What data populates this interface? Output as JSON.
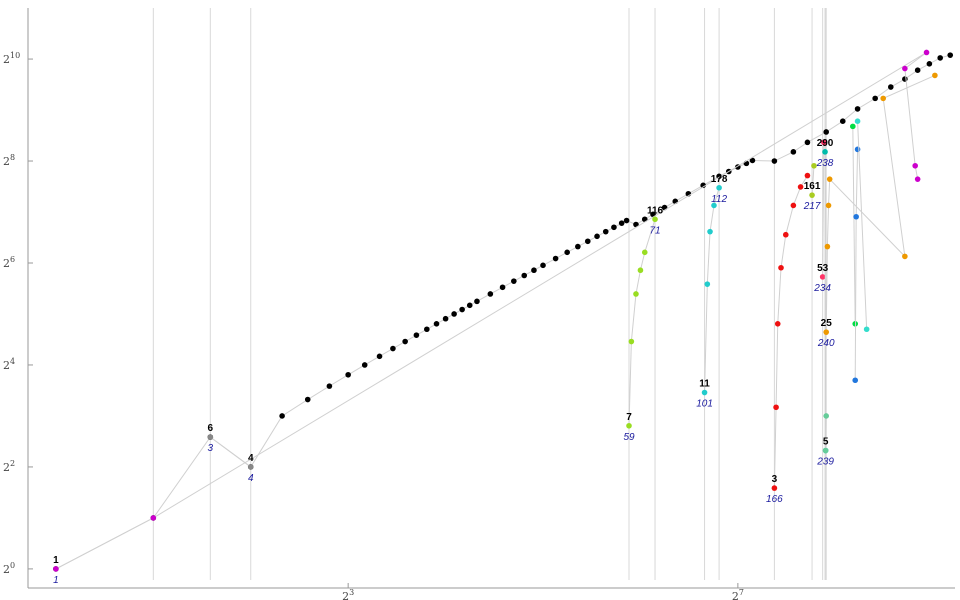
{
  "chart_data": {
    "type": "scatter",
    "title": "",
    "xlabel": "",
    "ylabel": "",
    "x_scale": "log2",
    "y_scale": "log2",
    "xlim": [
      0.82,
      600
    ],
    "ylim": [
      0.86,
      2050
    ],
    "x_ticks": [
      {
        "value": 8,
        "base": "2",
        "exp": "3"
      },
      {
        "value": 128,
        "base": "2",
        "exp": "7"
      }
    ],
    "y_ticks": [
      {
        "value": 1,
        "base": "2",
        "exp": "0"
      },
      {
        "value": 4,
        "base": "2",
        "exp": "2"
      },
      {
        "value": 16,
        "base": "2",
        "exp": "4"
      },
      {
        "value": 64,
        "base": "2",
        "exp": "6"
      },
      {
        "value": 256,
        "base": "2",
        "exp": "8"
      },
      {
        "value": 1024,
        "base": "2",
        "exp": "10"
      }
    ],
    "grid": "vertical lines at selected x values",
    "vertical_guides": [
      2,
      3,
      4,
      59,
      71,
      101,
      112,
      166,
      217,
      234,
      238,
      239,
      240
    ],
    "series": [
      {
        "color": "#000000",
        "points": [
          [
            1,
            1
          ],
          [
            2,
            2
          ],
          [
            3,
            6
          ],
          [
            4,
            4
          ],
          [
            5,
            8
          ],
          [
            6,
            10
          ],
          [
            7,
            12
          ],
          [
            8,
            14
          ],
          [
            9,
            16
          ],
          [
            10,
            18
          ],
          [
            11,
            20
          ],
          [
            12,
            22
          ],
          [
            13,
            24
          ],
          [
            14,
            26
          ],
          [
            15,
            28
          ],
          [
            16,
            30
          ],
          [
            17,
            32
          ],
          [
            18,
            34
          ],
          [
            19,
            36
          ],
          [
            20,
            38
          ],
          [
            22,
            42
          ],
          [
            24,
            46
          ],
          [
            26,
            50
          ],
          [
            28,
            54
          ],
          [
            30,
            58
          ],
          [
            32,
            62
          ],
          [
            35,
            68
          ],
          [
            38,
            74
          ],
          [
            41,
            80
          ],
          [
            44,
            86
          ],
          [
            47,
            92
          ],
          [
            50,
            98
          ],
          [
            53,
            104
          ],
          [
            56,
            110
          ],
          [
            58,
            114
          ],
          [
            62,
            108
          ],
          [
            66,
            116
          ],
          [
            70,
            124
          ],
          [
            76,
            136
          ],
          [
            82,
            148
          ],
          [
            90,
            164
          ],
          [
            100,
            184
          ],
          [
            112,
            208
          ],
          [
            120,
            222
          ],
          [
            128,
            236
          ],
          [
            136,
            248
          ],
          [
            142,
            258
          ],
          [
            166,
            256
          ],
          [
            190,
            290
          ],
          [
            210,
            330
          ],
          [
            240,
            380
          ],
          [
            270,
            440
          ],
          [
            300,
            520
          ],
          [
            340,
            600
          ],
          [
            380,
            700
          ],
          [
            420,
            780
          ],
          [
            460,
            880
          ],
          [
            500,
            960
          ],
          [
            540,
            1040
          ],
          [
            580,
            1080
          ]
        ]
      },
      {
        "color": "#cc00cc",
        "points": [
          [
            1,
            1
          ],
          [
            2,
            2
          ],
          [
            490,
            1120
          ],
          [
            420,
            900
          ],
          [
            452,
            240
          ],
          [
            460,
            200
          ]
        ]
      },
      {
        "color": "#888888",
        "points": [
          [
            3,
            6
          ],
          [
            4,
            4
          ]
        ]
      },
      {
        "color": "#99dd22",
        "points": [
          [
            59,
            7
          ],
          [
            60,
            22
          ],
          [
            62,
            42
          ],
          [
            64,
            58
          ],
          [
            66,
            74
          ],
          [
            71,
            116
          ]
        ]
      },
      {
        "color": "#22cccc",
        "points": [
          [
            101,
            11
          ],
          [
            103,
            48
          ],
          [
            105,
            98
          ],
          [
            108,
            140
          ],
          [
            112,
            178
          ]
        ]
      },
      {
        "color": "#ee1111",
        "points": [
          [
            166,
            3
          ],
          [
            168,
            9
          ],
          [
            170,
            28
          ],
          [
            174,
            60
          ],
          [
            180,
            94
          ],
          [
            190,
            140
          ],
          [
            200,
            180
          ],
          [
            210,
            210
          ]
        ]
      },
      {
        "color": "#aacc22",
        "points": [
          [
            217,
            161
          ],
          [
            220,
            240
          ]
        ]
      },
      {
        "color": "#ff3366",
        "points": [
          [
            234,
            53
          ],
          [
            236,
            330
          ]
        ]
      },
      {
        "color": "#00bbaa",
        "points": [
          [
            238,
            290
          ],
          [
            239,
            5
          ]
        ]
      },
      {
        "color": "#66cc99",
        "points": [
          [
            239,
            5
          ],
          [
            240,
            8
          ]
        ]
      },
      {
        "color": "#ee9900",
        "points": [
          [
            240,
            25
          ],
          [
            242,
            80
          ],
          [
            244,
            140
          ],
          [
            246,
            200
          ],
          [
            420,
            70
          ],
          [
            360,
            600
          ],
          [
            520,
            820
          ]
        ]
      },
      {
        "color": "#00dd44",
        "points": [
          [
            290,
            410
          ],
          [
            295,
            28
          ]
        ]
      },
      {
        "color": "#2277dd",
        "points": [
          [
            295,
            13
          ],
          [
            297,
            120
          ],
          [
            300,
            300
          ]
        ]
      },
      {
        "color": "#33ddcc",
        "points": [
          [
            320,
            26
          ],
          [
            300,
            440
          ]
        ]
      }
    ],
    "annotations": [
      {
        "x": 1,
        "y": 1,
        "top": "1",
        "bottom": "1"
      },
      {
        "x": 3,
        "y": 6,
        "top": "6",
        "bottom": "3"
      },
      {
        "x": 4,
        "y": 4,
        "top": "4",
        "bottom": "4"
      },
      {
        "x": 59,
        "y": 7,
        "top": "7",
        "bottom": "59"
      },
      {
        "x": 71,
        "y": 116,
        "top": "116",
        "bottom": "71"
      },
      {
        "x": 101,
        "y": 11,
        "top": "11",
        "bottom": "101"
      },
      {
        "x": 112,
        "y": 178,
        "top": "178",
        "bottom": "112"
      },
      {
        "x": 166,
        "y": 3,
        "top": "3",
        "bottom": "166"
      },
      {
        "x": 217,
        "y": 161,
        "top": "161",
        "bottom": "217"
      },
      {
        "x": 238,
        "y": 290,
        "top": "290",
        "bottom": "238"
      },
      {
        "x": 234,
        "y": 53,
        "top": "53",
        "bottom": "234"
      },
      {
        "x": 240,
        "y": 25,
        "top": "25",
        "bottom": "240"
      },
      {
        "x": 239,
        "y": 5,
        "top": "5",
        "bottom": "239"
      }
    ]
  }
}
